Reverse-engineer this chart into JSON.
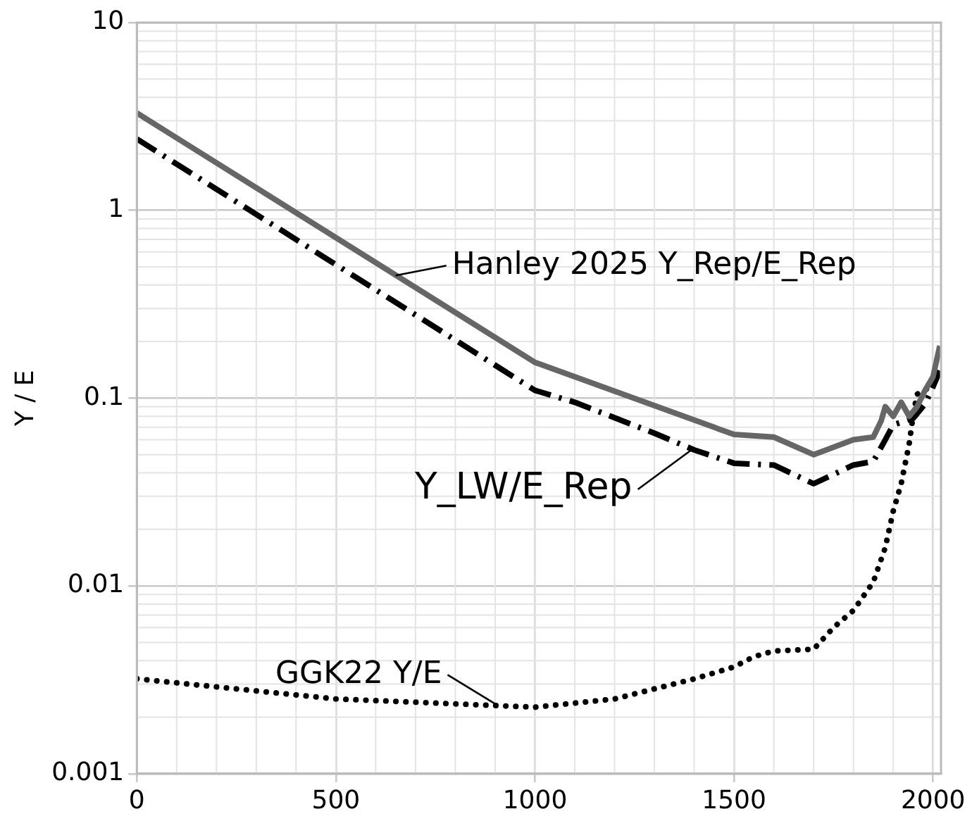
{
  "chart_data": {
    "type": "line",
    "ylabel": "Y / E",
    "log": "y",
    "grid": true,
    "legend": false,
    "marker": "none",
    "xlim": [
      0,
      2020
    ],
    "xticks": [
      0,
      500,
      1000,
      1500,
      2000
    ],
    "ylim": [
      0.001,
      10
    ],
    "yticks": [
      0.001,
      0.01,
      0.1,
      1,
      10
    ],
    "series": [
      {
        "color": "#666666",
        "line_style": "solid",
        "x": [
          0,
          1000,
          1500,
          1600,
          1700,
          1800,
          1850,
          1870,
          1880,
          1900,
          1920,
          1940,
          1960,
          1980,
          2000,
          2017
        ],
        "values": [
          3.3,
          0.155,
          0.064,
          0.062,
          0.05,
          0.06,
          0.062,
          0.076,
          0.09,
          0.08,
          0.095,
          0.08,
          0.09,
          0.11,
          0.13,
          0.19
        ]
      },
      {
        "color": "#000000",
        "line_style": "dashed",
        "x": [
          0,
          1000,
          1100,
          1300,
          1400,
          1500,
          1600,
          1700,
          1800,
          1850,
          1880,
          1900,
          1950,
          1980,
          2000,
          2017
        ],
        "values": [
          2.4,
          0.11,
          0.095,
          0.065,
          0.053,
          0.045,
          0.044,
          0.035,
          0.044,
          0.046,
          0.06,
          0.072,
          0.078,
          0.093,
          0.115,
          0.14
        ]
      },
      {
        "color": "#000000",
        "line_style": "dotted",
        "x": [
          0,
          500,
          1000,
          1200,
          1400,
          1500,
          1550,
          1600,
          1700,
          1750,
          1800,
          1850,
          1880,
          1900,
          1920,
          1940,
          1950,
          1960,
          1980,
          2000,
          2017
        ],
        "values": [
          0.0032,
          0.0025,
          0.00226,
          0.0025,
          0.0032,
          0.0037,
          0.0042,
          0.0045,
          0.0046,
          0.006,
          0.0074,
          0.0105,
          0.016,
          0.025,
          0.035,
          0.057,
          0.081,
          0.105,
          0.11,
          0.12,
          0.14
        ]
      }
    ],
    "annotations": [
      {
        "text": "Hanley 2025 Y_Rep/E_Rep",
        "x": 650,
        "y": 0.45
      },
      {
        "text": "Y_LW/E_Rep",
        "x": 1393,
        "y": 0.053
      },
      {
        "text": "GGK22 Y/E",
        "x": 908,
        "y": 0.0023
      }
    ]
  }
}
